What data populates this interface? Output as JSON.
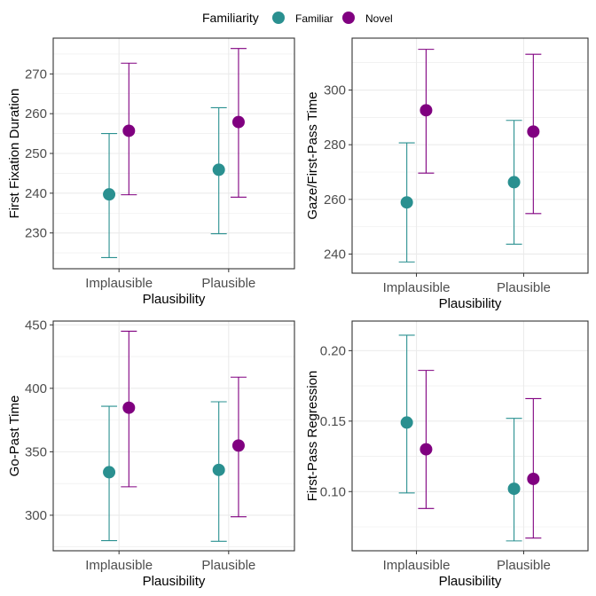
{
  "legend": {
    "title": "Familiarity",
    "placement": "top",
    "items": [
      {
        "label": "Familiar",
        "color": "#2A9090"
      },
      {
        "label": "Novel",
        "color": "#800080"
      }
    ]
  },
  "chart_data": [
    {
      "type": "errorbar",
      "xlabel": "Plausibility",
      "ylabel": "First Fixation Duration",
      "categories": [
        "Implausible",
        "Plausible"
      ],
      "ylim": [
        221,
        279
      ],
      "yticks": [
        "230",
        "240",
        "250",
        "260",
        "270"
      ],
      "grid": true,
      "series": [
        {
          "name": "Familiar",
          "color": "#2A9090",
          "mean": [
            239.7,
            245.9
          ],
          "lower": [
            223.8,
            229.8
          ],
          "upper": [
            255.0,
            261.5
          ]
        },
        {
          "name": "Novel",
          "color": "#800080",
          "mean": [
            255.7,
            257.9
          ],
          "lower": [
            239.6,
            239.0
          ],
          "upper": [
            272.7,
            276.4
          ]
        }
      ]
    },
    {
      "type": "errorbar",
      "xlabel": "Plausibility",
      "ylabel": "Gaze/First-Pass Time",
      "categories": [
        "Implausible",
        "Plausible"
      ],
      "ylim": [
        233,
        319
      ],
      "yticks": [
        "240",
        "260",
        "280",
        "300"
      ],
      "grid": true,
      "series": [
        {
          "name": "Familiar",
          "color": "#2A9090",
          "mean": [
            258.9,
            266.3
          ],
          "lower": [
            237.1,
            243.6
          ],
          "upper": [
            280.7,
            288.9
          ]
        },
        {
          "name": "Novel",
          "color": "#800080",
          "mean": [
            292.6,
            284.8
          ],
          "lower": [
            269.6,
            254.8
          ],
          "upper": [
            314.9,
            313.1
          ]
        }
      ]
    },
    {
      "type": "errorbar",
      "xlabel": "Plausibility",
      "ylabel": "Go-Past Time",
      "categories": [
        "Implausible",
        "Plausible"
      ],
      "ylim": [
        272,
        453
      ],
      "yticks": [
        "300",
        "350",
        "400",
        "450"
      ],
      "grid": true,
      "series": [
        {
          "name": "Familiar",
          "color": "#2A9090",
          "mean": [
            333.9,
            335.7
          ],
          "lower": [
            280.0,
            279.5
          ],
          "upper": [
            385.9,
            389.4
          ]
        },
        {
          "name": "Novel",
          "color": "#800080",
          "mean": [
            384.7,
            354.9
          ],
          "lower": [
            322.4,
            298.8
          ],
          "upper": [
            445.0,
            408.8
          ]
        }
      ]
    },
    {
      "type": "errorbar",
      "xlabel": "Plausibility",
      "ylabel": "First-Pass Regression",
      "categories": [
        "Implausible",
        "Plausible"
      ],
      "ylim": [
        0.058,
        0.221
      ],
      "yticks": [
        "0.10",
        "0.15",
        "0.20"
      ],
      "grid": true,
      "series": [
        {
          "name": "Familiar",
          "color": "#2A9090",
          "mean": [
            0.149,
            0.102
          ],
          "lower": [
            0.099,
            0.065
          ],
          "upper": [
            0.211,
            0.152
          ]
        },
        {
          "name": "Novel",
          "color": "#800080",
          "mean": [
            0.13,
            0.109
          ],
          "lower": [
            0.088,
            0.067
          ],
          "upper": [
            0.186,
            0.166
          ]
        }
      ]
    }
  ]
}
